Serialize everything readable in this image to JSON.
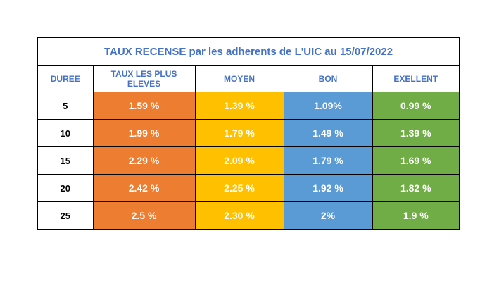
{
  "table": {
    "title": "TAUX RECENSE par les adherents de L'UIC au 15/07/2022",
    "headers": [
      "DUREE",
      "TAUX LES PLUS ELEVES",
      "MOYEN",
      "BON",
      "EXELLENT"
    ],
    "rows": [
      [
        "5",
        "1.59 %",
        "1.39 %",
        "1.09%",
        "0.99 %"
      ],
      [
        "10",
        "1.99 %",
        "1.79 %",
        "1.49 %",
        "1.39 %"
      ],
      [
        "15",
        "2.29 %",
        "2.09 %",
        "1.79 %",
        "1.69 %"
      ],
      [
        "20",
        "2.42 %",
        "2.25 %",
        "1.92 %",
        "1.82 %"
      ],
      [
        "25",
        "2.5 %",
        "2.30 %",
        "2%",
        "1.9 %"
      ]
    ]
  }
}
